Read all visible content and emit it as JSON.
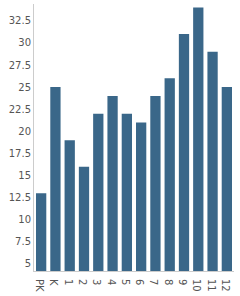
{
  "chart_data": {
    "type": "bar",
    "categories": [
      "PK",
      "K",
      "1",
      "2",
      "3",
      "4",
      "5",
      "6",
      "7",
      "8",
      "9",
      "10",
      "11",
      "12"
    ],
    "values": [
      13,
      25,
      19,
      16,
      22,
      24,
      22,
      21,
      24,
      26,
      31,
      34,
      29,
      25
    ],
    "color": "#3a6789",
    "ylim": [
      4.2,
      34.4
    ],
    "yticks": [
      5,
      7.5,
      10,
      12.5,
      15,
      17.5,
      20,
      22.5,
      25,
      27.5,
      30,
      32.5
    ],
    "grid": false
  }
}
